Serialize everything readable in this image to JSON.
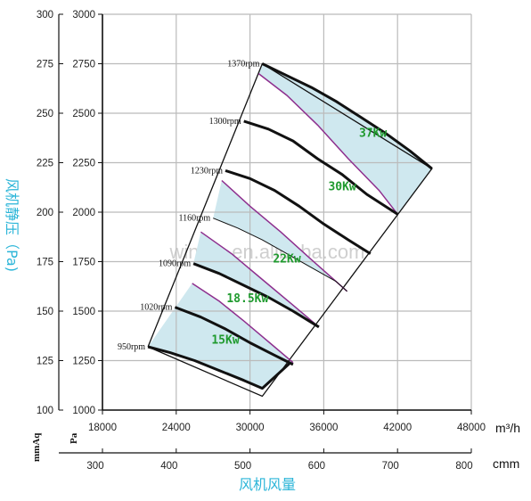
{
  "chart_data": {
    "type": "line",
    "title": "",
    "watermark": "winfan.en.alibaba.com",
    "xlabel": "风机风量",
    "ylabel": "风机静压（Pa)",
    "x_unit_primary": "m³/h",
    "x_unit_secondary": "cmm",
    "y_unit_left_outer": "mmAq",
    "y_unit_left_inner": "Pa",
    "x_primary_ticks": [
      18000,
      24000,
      30000,
      36000,
      42000,
      48000
    ],
    "x_primary_range": [
      18000,
      48000
    ],
    "x_secondary_ticks": [
      300,
      400,
      500,
      600,
      700,
      800
    ],
    "x_secondary_range": [
      300,
      800
    ],
    "y_pa_ticks": [
      1000,
      1250,
      1500,
      1750,
      2000,
      2250,
      2500,
      2750,
      3000
    ],
    "y_pa_range": [
      1000,
      3000
    ],
    "y_mmaq_ticks": [
      100,
      125,
      150,
      175,
      200,
      225,
      250,
      275,
      300
    ],
    "grid": true,
    "colors": {
      "black": "#111111",
      "purple": "#8e2f8e",
      "band": "#cfe8ef",
      "green": "#1f9a2e",
      "cyan": "#2bb5d8",
      "grid": "#bbbbbb"
    },
    "speed_curves": [
      {
        "name": "1370rpm",
        "points": [
          [
            31000,
            2750
          ],
          [
            33000,
            2690
          ],
          [
            35000,
            2630
          ],
          [
            37000,
            2560
          ],
          [
            39000,
            2480
          ],
          [
            41000,
            2400
          ],
          [
            43000,
            2310
          ],
          [
            44800,
            2220
          ]
        ]
      },
      {
        "name": "1300rpm",
        "points": [
          [
            29500,
            2460
          ],
          [
            31500,
            2420
          ],
          [
            33500,
            2360
          ],
          [
            35500,
            2270
          ],
          [
            37500,
            2190
          ],
          [
            39500,
            2090
          ],
          [
            42000,
            1990
          ]
        ]
      },
      {
        "name": "1230rpm",
        "points": [
          [
            28000,
            2210
          ],
          [
            30000,
            2170
          ],
          [
            32000,
            2110
          ],
          [
            34000,
            2030
          ],
          [
            36000,
            1940
          ],
          [
            38000,
            1860
          ],
          [
            39800,
            1790
          ]
        ]
      },
      {
        "name": "1160rpm",
        "points": [
          [
            27000,
            1970
          ],
          [
            29000,
            1920
          ],
          [
            31000,
            1860
          ],
          [
            33000,
            1790
          ],
          [
            35000,
            1720
          ],
          [
            37000,
            1650
          ],
          [
            37900,
            1600
          ]
        ]
      },
      {
        "name": "1090rpm",
        "points": [
          [
            25400,
            1740
          ],
          [
            27500,
            1690
          ],
          [
            29500,
            1630
          ],
          [
            31500,
            1570
          ],
          [
            33500,
            1500
          ],
          [
            35600,
            1420
          ]
        ]
      },
      {
        "name": "1020rpm",
        "points": [
          [
            23900,
            1520
          ],
          [
            26000,
            1470
          ],
          [
            28000,
            1410
          ],
          [
            30000,
            1340
          ],
          [
            31900,
            1280
          ],
          [
            33500,
            1230
          ]
        ]
      },
      {
        "name": "950rpm",
        "points": [
          [
            21700,
            1320
          ],
          [
            23500,
            1290
          ],
          [
            25500,
            1250
          ],
          [
            27500,
            1200
          ],
          [
            29500,
            1150
          ],
          [
            31000,
            1110
          ],
          [
            33300,
            1240
          ]
        ]
      }
    ],
    "frame_polygon": [
      [
        21700,
        1320
      ],
      [
        31000,
        2750
      ],
      [
        44800,
        2220
      ],
      [
        31000,
        1070
      ],
      [
        21700,
        1320
      ]
    ],
    "power_bands": [
      {
        "label": "15Kw",
        "label_at": [
          28000,
          1335
        ]
      },
      {
        "label": "18.5Kw",
        "label_at": [
          29800,
          1545
        ]
      },
      {
        "label": "22Kw",
        "label_at": [
          33000,
          1745
        ]
      },
      {
        "label": "30Kw",
        "label_at": [
          37500,
          2110
        ]
      },
      {
        "label": "37Kw",
        "label_at": [
          40000,
          2380
        ]
      }
    ],
    "power_boundaries": [
      {
        "points": [
          [
            25300,
            1640
          ],
          [
            27500,
            1550
          ],
          [
            29500,
            1450
          ],
          [
            31600,
            1340
          ],
          [
            33500,
            1240
          ]
        ]
      },
      {
        "points": [
          [
            26000,
            1900
          ],
          [
            28500,
            1790
          ],
          [
            31000,
            1660
          ],
          [
            33500,
            1530
          ],
          [
            35600,
            1420
          ]
        ]
      },
      {
        "points": [
          [
            27700,
            2160
          ],
          [
            30000,
            2030
          ],
          [
            32500,
            1900
          ],
          [
            35000,
            1760
          ],
          [
            37900,
            1600
          ]
        ]
      },
      {
        "points": [
          [
            30700,
            2700
          ],
          [
            33000,
            2590
          ],
          [
            35500,
            2440
          ],
          [
            38000,
            2270
          ],
          [
            40500,
            2110
          ],
          [
            42000,
            1990
          ]
        ]
      }
    ]
  }
}
